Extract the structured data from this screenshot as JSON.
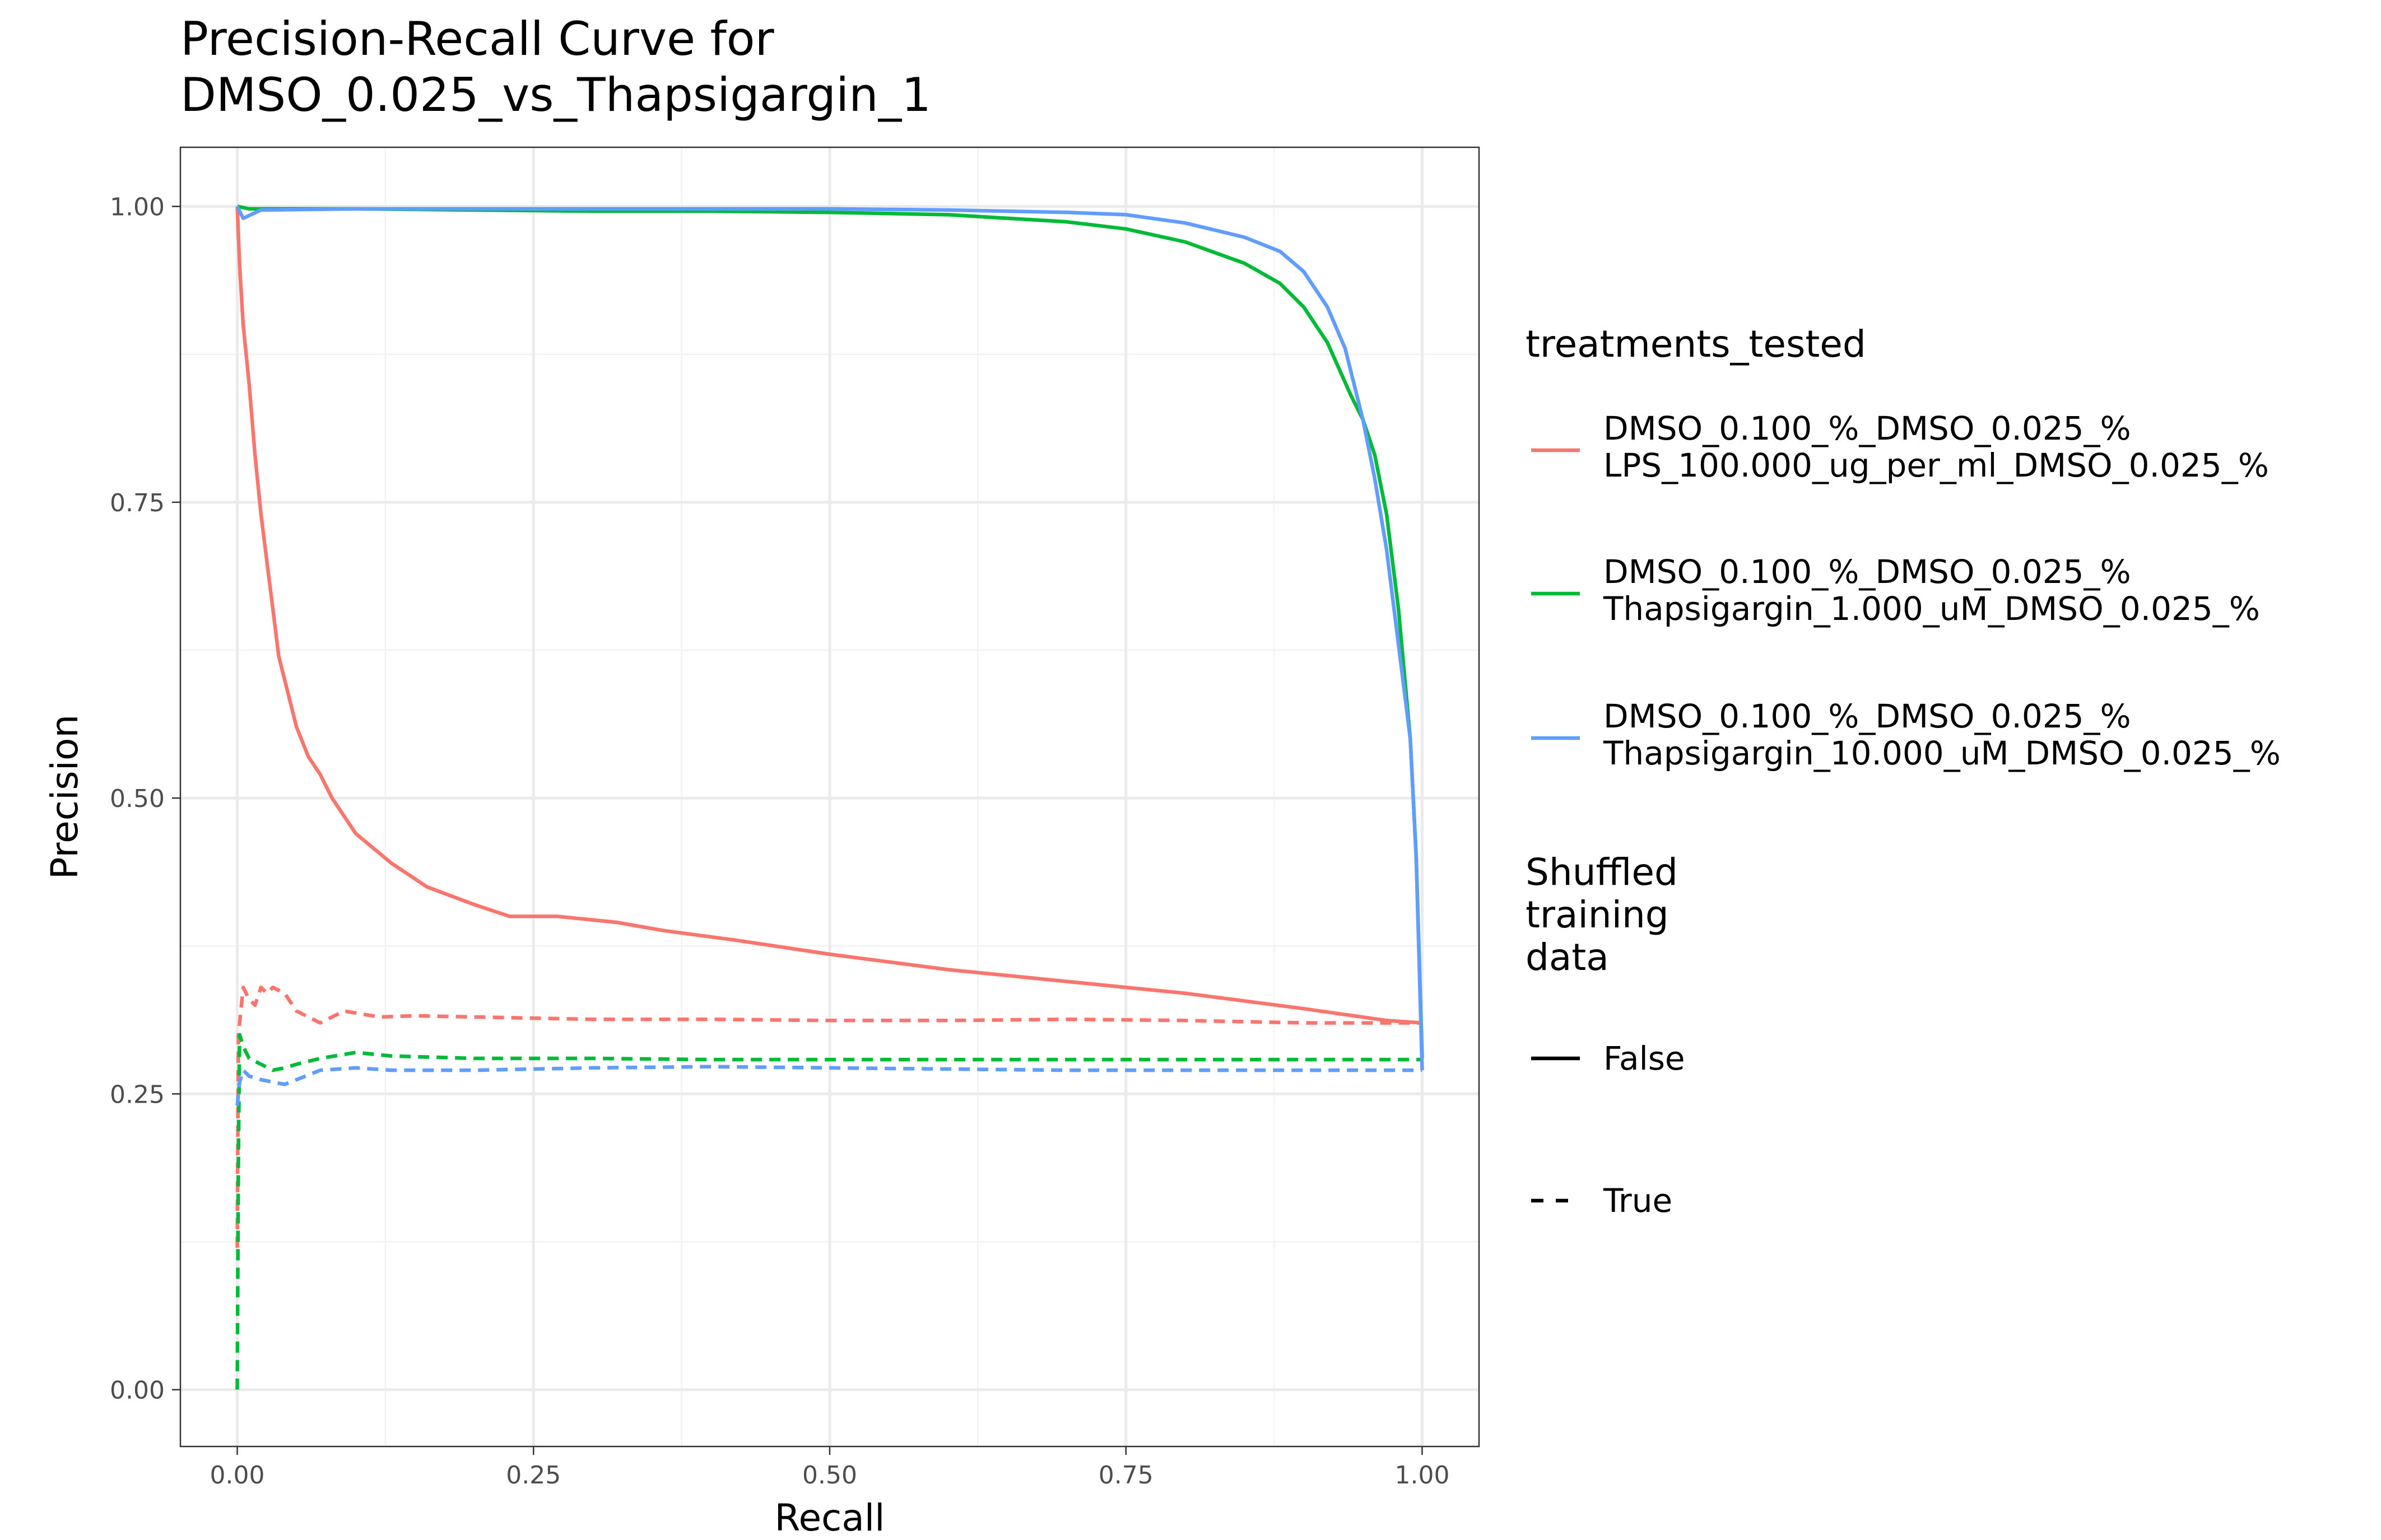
{
  "chart_data": {
    "type": "line",
    "title_lines": [
      "Precision-Recall Curve for",
      "DMSO_0.025_vs_Thapsigargin_1"
    ],
    "xlabel": "Recall",
    "ylabel": "Precision",
    "xlim": [
      -0.048,
      1.048
    ],
    "ylim": [
      -0.048,
      1.05
    ],
    "x_ticks": [
      0,
      0.25,
      0.5,
      0.75,
      1.0
    ],
    "x_tick_labels": [
      "0.00",
      "0.25",
      "0.50",
      "0.75",
      "1.00"
    ],
    "y_ticks": [
      0,
      0.25,
      0.5,
      0.75,
      1.0
    ],
    "y_tick_labels": [
      "0.00",
      "0.25",
      "0.50",
      "0.75",
      "1.00"
    ],
    "grid": true,
    "legend_position": "right",
    "legend": {
      "color_title": "treatments_tested",
      "color_entries": [
        {
          "lines": [
            "DMSO_0.100_%_DMSO_0.025_%",
            "LPS_100.000_ug_per_ml_DMSO_0.025_%"
          ],
          "color": "#F8766D"
        },
        {
          "lines": [
            "DMSO_0.100_%_DMSO_0.025_%",
            "Thapsigargin_1.000_uM_DMSO_0.025_%"
          ],
          "color": "#00BA38"
        },
        {
          "lines": [
            "DMSO_0.100_%_DMSO_0.025_%",
            "Thapsigargin_10.000_uM_DMSO_0.025_%"
          ],
          "color": "#619CFF"
        }
      ],
      "linetype_title_lines": [
        "Shuffled",
        "training",
        "data"
      ],
      "linetype_entries": [
        {
          "label": "False",
          "dash": "solid"
        },
        {
          "label": "True",
          "dash": "dashed"
        }
      ]
    },
    "series": [
      {
        "treatment": 0,
        "shuffled": "False",
        "points": [
          [
            0,
            1.0
          ],
          [
            0.002,
            0.95
          ],
          [
            0.005,
            0.9
          ],
          [
            0.01,
            0.85
          ],
          [
            0.015,
            0.79
          ],
          [
            0.02,
            0.74
          ],
          [
            0.025,
            0.7
          ],
          [
            0.03,
            0.66
          ],
          [
            0.035,
            0.62
          ],
          [
            0.04,
            0.6
          ],
          [
            0.05,
            0.56
          ],
          [
            0.06,
            0.535
          ],
          [
            0.07,
            0.52
          ],
          [
            0.08,
            0.5
          ],
          [
            0.1,
            0.47
          ],
          [
            0.13,
            0.445
          ],
          [
            0.16,
            0.425
          ],
          [
            0.2,
            0.41
          ],
          [
            0.23,
            0.4
          ],
          [
            0.27,
            0.4
          ],
          [
            0.32,
            0.395
          ],
          [
            0.36,
            0.388
          ],
          [
            0.42,
            0.38
          ],
          [
            0.5,
            0.368
          ],
          [
            0.6,
            0.355
          ],
          [
            0.7,
            0.345
          ],
          [
            0.8,
            0.335
          ],
          [
            0.9,
            0.322
          ],
          [
            0.97,
            0.312
          ],
          [
            1.0,
            0.31
          ]
        ]
      },
      {
        "treatment": 0,
        "shuffled": "True",
        "points": [
          [
            0,
            0.12
          ],
          [
            0.001,
            0.3
          ],
          [
            0.005,
            0.34
          ],
          [
            0.01,
            0.33
          ],
          [
            0.015,
            0.325
          ],
          [
            0.02,
            0.34
          ],
          [
            0.025,
            0.335
          ],
          [
            0.03,
            0.34
          ],
          [
            0.04,
            0.335
          ],
          [
            0.05,
            0.32
          ],
          [
            0.06,
            0.315
          ],
          [
            0.07,
            0.31
          ],
          [
            0.09,
            0.32
          ],
          [
            0.12,
            0.315
          ],
          [
            0.15,
            0.316
          ],
          [
            0.2,
            0.315
          ],
          [
            0.3,
            0.313
          ],
          [
            0.4,
            0.313
          ],
          [
            0.5,
            0.312
          ],
          [
            0.6,
            0.312
          ],
          [
            0.7,
            0.313
          ],
          [
            0.8,
            0.312
          ],
          [
            0.9,
            0.31
          ],
          [
            1.0,
            0.31
          ]
        ]
      },
      {
        "treatment": 1,
        "shuffled": "False",
        "points": [
          [
            0,
            1.0
          ],
          [
            0.01,
            0.998
          ],
          [
            0.1,
            0.998
          ],
          [
            0.2,
            0.997
          ],
          [
            0.3,
            0.996
          ],
          [
            0.4,
            0.996
          ],
          [
            0.5,
            0.995
          ],
          [
            0.6,
            0.993
          ],
          [
            0.65,
            0.99
          ],
          [
            0.7,
            0.987
          ],
          [
            0.75,
            0.981
          ],
          [
            0.8,
            0.97
          ],
          [
            0.85,
            0.952
          ],
          [
            0.88,
            0.935
          ],
          [
            0.9,
            0.915
          ],
          [
            0.92,
            0.885
          ],
          [
            0.94,
            0.84
          ],
          [
            0.95,
            0.82
          ],
          [
            0.96,
            0.79
          ],
          [
            0.97,
            0.74
          ],
          [
            0.98,
            0.66
          ],
          [
            0.99,
            0.55
          ],
          [
            0.995,
            0.45
          ],
          [
            1.0,
            0.28
          ]
        ]
      },
      {
        "treatment": 1,
        "shuffled": "True",
        "points": [
          [
            0,
            0.0
          ],
          [
            0.001,
            0.2
          ],
          [
            0.002,
            0.3
          ],
          [
            0.005,
            0.29
          ],
          [
            0.01,
            0.28
          ],
          [
            0.02,
            0.275
          ],
          [
            0.03,
            0.27
          ],
          [
            0.04,
            0.272
          ],
          [
            0.05,
            0.275
          ],
          [
            0.07,
            0.28
          ],
          [
            0.1,
            0.285
          ],
          [
            0.13,
            0.282
          ],
          [
            0.2,
            0.28
          ],
          [
            0.3,
            0.28
          ],
          [
            0.4,
            0.279
          ],
          [
            0.5,
            0.279
          ],
          [
            0.6,
            0.279
          ],
          [
            0.7,
            0.279
          ],
          [
            0.8,
            0.279
          ],
          [
            0.9,
            0.279
          ],
          [
            1.0,
            0.279
          ]
        ]
      },
      {
        "treatment": 2,
        "shuffled": "False",
        "points": [
          [
            0,
            1.0
          ],
          [
            0.005,
            0.99
          ],
          [
            0.02,
            0.997
          ],
          [
            0.1,
            0.998
          ],
          [
            0.2,
            0.998
          ],
          [
            0.3,
            0.998
          ],
          [
            0.4,
            0.998
          ],
          [
            0.5,
            0.998
          ],
          [
            0.6,
            0.997
          ],
          [
            0.7,
            0.995
          ],
          [
            0.75,
            0.993
          ],
          [
            0.8,
            0.986
          ],
          [
            0.85,
            0.974
          ],
          [
            0.88,
            0.962
          ],
          [
            0.9,
            0.945
          ],
          [
            0.92,
            0.915
          ],
          [
            0.935,
            0.88
          ],
          [
            0.95,
            0.82
          ],
          [
            0.96,
            0.77
          ],
          [
            0.97,
            0.71
          ],
          [
            0.98,
            0.63
          ],
          [
            0.99,
            0.55
          ],
          [
            0.995,
            0.45
          ],
          [
            1.0,
            0.27
          ]
        ]
      },
      {
        "treatment": 2,
        "shuffled": "True",
        "points": [
          [
            0,
            0.24
          ],
          [
            0.002,
            0.26
          ],
          [
            0.005,
            0.27
          ],
          [
            0.01,
            0.265
          ],
          [
            0.02,
            0.262
          ],
          [
            0.03,
            0.26
          ],
          [
            0.04,
            0.258
          ],
          [
            0.05,
            0.262
          ],
          [
            0.07,
            0.27
          ],
          [
            0.1,
            0.272
          ],
          [
            0.13,
            0.27
          ],
          [
            0.2,
            0.27
          ],
          [
            0.3,
            0.272
          ],
          [
            0.4,
            0.273
          ],
          [
            0.5,
            0.272
          ],
          [
            0.6,
            0.271
          ],
          [
            0.7,
            0.27
          ],
          [
            0.8,
            0.27
          ],
          [
            0.9,
            0.27
          ],
          [
            1.0,
            0.27
          ]
        ]
      }
    ]
  }
}
